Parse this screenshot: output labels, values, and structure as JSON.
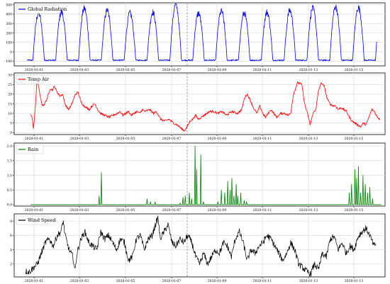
{
  "chart_data": [
    {
      "type": "line",
      "series": [
        {
          "name": "Global Radiation",
          "color": "#0000ff",
          "values": []
        }
      ],
      "x_dates": [
        "2020-01-01",
        "2020-01-03",
        "2020-01-05",
        "2020-01-07",
        "2020-01-09",
        "2020-01-11",
        "2020-01-13",
        "2020-01-15"
      ],
      "x_range": [
        "2020-01-01",
        "2020-01-16"
      ],
      "ylim": [
        -150,
        520
      ],
      "yticks": [
        -100,
        0,
        100,
        200,
        300,
        400,
        500
      ],
      "ytick_labels": [
        "-100",
        "0",
        "100",
        "200",
        "300",
        "400",
        "500"
      ],
      "daily_peaks": [
        410,
        420,
        460,
        440,
        410,
        420,
        500,
        410,
        430,
        410,
        420,
        440,
        460,
        480,
        470
      ],
      "night_level": -90,
      "grid": true,
      "legend": "top-left"
    },
    {
      "type": "line",
      "series": [
        {
          "name": "Temp Air",
          "color": "#ff0000",
          "values": []
        }
      ],
      "x_dates": [
        "2020-01-01",
        "2020-01-03",
        "2020-01-05",
        "2020-01-07",
        "2020-01-09",
        "2020-01-11",
        "2020-01-13",
        "2020-01-15"
      ],
      "x_range": [
        "2020-01-01",
        "2020-01-16"
      ],
      "ylim": [
        -1,
        31
      ],
      "yticks": [
        0,
        5,
        10,
        15,
        20,
        25,
        30
      ],
      "ytick_labels": [
        "0",
        "5",
        "10",
        "15",
        "20",
        "25",
        "30"
      ],
      "keypoints": [
        [
          0.0,
          10
        ],
        [
          0.1,
          8
        ],
        [
          0.2,
          2
        ],
        [
          0.33,
          12
        ],
        [
          0.45,
          27
        ],
        [
          0.55,
          25
        ],
        [
          0.7,
          18
        ],
        [
          0.85,
          14
        ],
        [
          1.0,
          15
        ],
        [
          1.2,
          18
        ],
        [
          1.4,
          23
        ],
        [
          1.55,
          22
        ],
        [
          1.7,
          24
        ],
        [
          1.9,
          21
        ],
        [
          2.1,
          19
        ],
        [
          2.3,
          20
        ],
        [
          2.45,
          15
        ],
        [
          2.7,
          12
        ],
        [
          2.9,
          14
        ],
        [
          3.2,
          20
        ],
        [
          3.4,
          21
        ],
        [
          3.6,
          16
        ],
        [
          3.8,
          14
        ],
        [
          4.0,
          13
        ],
        [
          4.2,
          12
        ],
        [
          4.4,
          14
        ],
        [
          4.6,
          15
        ],
        [
          4.8,
          12
        ],
        [
          5.0,
          10
        ],
        [
          5.3,
          9
        ],
        [
          5.6,
          8
        ],
        [
          5.9,
          9
        ],
        [
          6.2,
          10
        ],
        [
          6.4,
          11
        ],
        [
          6.6,
          9
        ],
        [
          6.8,
          10
        ],
        [
          7.0,
          11
        ],
        [
          7.2,
          9
        ],
        [
          7.4,
          10
        ],
        [
          7.6,
          11
        ],
        [
          7.8,
          10
        ],
        [
          8.0,
          12
        ],
        [
          8.2,
          11
        ],
        [
          8.5,
          12
        ],
        [
          8.8,
          10
        ],
        [
          9.0,
          11
        ],
        [
          9.3,
          7
        ],
        [
          9.6,
          6
        ],
        [
          9.9,
          7
        ],
        [
          10.2,
          5
        ],
        [
          10.5,
          4
        ],
        [
          10.8,
          2
        ],
        [
          11.0,
          1
        ],
        [
          11.2,
          3
        ],
        [
          11.4,
          6
        ],
        [
          11.6,
          7
        ],
        [
          11.8,
          9
        ],
        [
          12.0,
          7
        ],
        [
          12.4,
          9
        ],
        [
          12.8,
          11
        ],
        [
          13.1,
          11
        ],
        [
          13.4,
          10
        ],
        [
          13.7,
          11
        ],
        [
          14.0,
          9
        ],
        [
          14.4,
          11
        ],
        [
          14.8,
          10
        ],
        [
          15.1,
          12
        ],
        [
          15.3,
          18
        ],
        [
          15.5,
          20
        ],
        [
          15.7,
          17
        ],
        [
          16.0,
          12
        ],
        [
          16.2,
          10
        ],
        [
          16.4,
          14
        ],
        [
          16.6,
          10
        ],
        [
          16.8,
          8
        ],
        [
          17.0,
          10
        ],
        [
          17.2,
          12
        ],
        [
          17.4,
          10
        ],
        [
          17.6,
          8
        ],
        [
          17.9,
          10
        ],
        [
          18.2,
          10
        ],
        [
          18.4,
          9
        ],
        [
          18.6,
          10
        ],
        [
          18.8,
          20
        ],
        [
          19.1,
          26
        ],
        [
          19.4,
          25
        ],
        [
          19.6,
          15
        ],
        [
          19.8,
          10
        ],
        [
          20.0,
          4
        ],
        [
          20.2,
          10
        ],
        [
          20.4,
          12
        ],
        [
          20.6,
          22
        ],
        [
          20.8,
          26
        ],
        [
          21.0,
          24
        ],
        [
          21.2,
          18
        ],
        [
          21.4,
          15
        ],
        [
          21.6,
          14
        ],
        [
          21.8,
          14
        ],
        [
          22.0,
          12
        ],
        [
          22.2,
          13
        ],
        [
          22.4,
          12
        ],
        [
          22.6,
          11
        ],
        [
          22.8,
          8
        ],
        [
          23.0,
          6
        ],
        [
          23.2,
          5
        ],
        [
          23.4,
          4
        ],
        [
          23.6,
          3
        ],
        [
          23.8,
          5
        ],
        [
          24.0,
          4
        ],
        [
          24.2,
          8
        ],
        [
          24.4,
          12
        ],
        [
          24.6,
          11
        ],
        [
          24.8,
          8
        ],
        [
          25.0,
          7
        ]
      ],
      "grid": true,
      "legend": "top-left"
    },
    {
      "type": "line",
      "series": [
        {
          "name": "Rain",
          "color": "#008000",
          "values": []
        }
      ],
      "x_dates": [
        "2020-01-01",
        "2020-01-03",
        "2020-01-05",
        "2020-01-07",
        "2020-01-09",
        "2020-01-11",
        "2020-01-13",
        "2020-01-15"
      ],
      "x_range": [
        "2020-01-01",
        "2020-01-16"
      ],
      "ylim": [
        -0.05,
        2.1
      ],
      "yticks": [
        0,
        0.5,
        1.0,
        1.5,
        2.0
      ],
      "ytick_labels": [
        "0.0",
        "0.5",
        "1.0",
        "1.5",
        "2.0"
      ],
      "events": [
        [
          2.85,
          0.3
        ],
        [
          2.95,
          1.1
        ],
        [
          4.95,
          0.2
        ],
        [
          5.1,
          0.1
        ],
        [
          5.3,
          0.1
        ],
        [
          6.4,
          0.05
        ],
        [
          6.52,
          0.25
        ],
        [
          6.62,
          0.3
        ],
        [
          6.8,
          0.4
        ],
        [
          6.9,
          0.2
        ],
        [
          7.05,
          2.0
        ],
        [
          7.12,
          1.2
        ],
        [
          7.3,
          1.7
        ],
        [
          7.42,
          0.1
        ],
        [
          8.05,
          0.1
        ],
        [
          8.2,
          0.5
        ],
        [
          8.35,
          0.4
        ],
        [
          8.48,
          0.8
        ],
        [
          8.58,
          0.5
        ],
        [
          8.66,
          0.9
        ],
        [
          8.75,
          0.3
        ],
        [
          8.85,
          0.7
        ],
        [
          8.92,
          0.3
        ],
        [
          9.05,
          0.4
        ],
        [
          9.2,
          0.15
        ],
        [
          9.3,
          0.1
        ],
        [
          13.8,
          0.4
        ],
        [
          13.9,
          0.7
        ],
        [
          14.05,
          1.2
        ],
        [
          14.12,
          0.9
        ],
        [
          14.2,
          1.3
        ],
        [
          14.3,
          0.4
        ],
        [
          14.4,
          1.0
        ],
        [
          14.5,
          0.7
        ],
        [
          14.6,
          0.4
        ],
        [
          14.7,
          0.6
        ],
        [
          14.82,
          0.2
        ]
      ],
      "grid": true,
      "legend": "top-left"
    },
    {
      "type": "line",
      "series": [
        {
          "name": "Wind Speed",
          "color": "#000000",
          "values": []
        }
      ],
      "x_dates": [
        "2020-01-01",
        "2020-01-03",
        "2020-01-05",
        "2020-01-07",
        "2020-01-09",
        "2020-01-11",
        "2020-01-13",
        "2020-01-13"
      ],
      "x_range": [
        "2020-01-01",
        "2020-01-14"
      ],
      "ylim": [
        0.2,
        9
      ],
      "yticks": [
        2,
        4,
        6,
        8
      ],
      "ytick_labels": [
        "2",
        "4",
        "6",
        "8"
      ],
      "keypoints": [
        [
          0.0,
          1.0
        ],
        [
          0.2,
          0.9
        ],
        [
          0.4,
          1.5
        ],
        [
          0.6,
          2.0
        ],
        [
          0.8,
          3.5
        ],
        [
          1.0,
          5.0
        ],
        [
          1.2,
          5.5
        ],
        [
          1.4,
          4.5
        ],
        [
          1.6,
          6.0
        ],
        [
          1.8,
          6.5
        ],
        [
          1.9,
          8.1
        ],
        [
          2.0,
          6.0
        ],
        [
          2.2,
          4.0
        ],
        [
          2.4,
          3.0
        ],
        [
          2.5,
          1.0
        ],
        [
          2.6,
          3.5
        ],
        [
          2.8,
          5.5
        ],
        [
          3.0,
          6.5
        ],
        [
          3.2,
          5.0
        ],
        [
          3.4,
          4.5
        ],
        [
          3.6,
          4.0
        ],
        [
          3.8,
          6.5
        ],
        [
          4.0,
          5.5
        ],
        [
          4.2,
          6.0
        ],
        [
          4.4,
          5.0
        ],
        [
          4.6,
          4.0
        ],
        [
          4.8,
          5.5
        ],
        [
          5.0,
          5.0
        ],
        [
          5.2,
          2.5
        ],
        [
          5.4,
          3.0
        ],
        [
          5.6,
          5.5
        ],
        [
          5.8,
          6.0
        ],
        [
          6.0,
          4.0
        ],
        [
          6.2,
          5.5
        ],
        [
          6.4,
          6.0
        ],
        [
          6.6,
          7.8
        ],
        [
          6.7,
          8.5
        ],
        [
          6.8,
          5.5
        ],
        [
          7.0,
          6.5
        ],
        [
          7.2,
          7.5
        ],
        [
          7.4,
          5.0
        ],
        [
          7.6,
          4.5
        ],
        [
          7.8,
          5.5
        ],
        [
          8.0,
          5.0
        ],
        [
          8.2,
          6.0
        ],
        [
          8.4,
          5.0
        ],
        [
          8.6,
          3.0
        ],
        [
          8.8,
          2.0
        ],
        [
          9.0,
          3.5
        ],
        [
          9.2,
          2.0
        ],
        [
          9.4,
          3.0
        ],
        [
          9.6,
          4.0
        ],
        [
          9.8,
          3.5
        ],
        [
          10.0,
          5.0
        ],
        [
          10.2,
          4.5
        ],
        [
          10.4,
          3.0
        ],
        [
          10.6,
          5.5
        ],
        [
          10.8,
          6.5
        ],
        [
          11.0,
          5.0
        ],
        [
          11.2,
          2.5
        ],
        [
          11.4,
          4.0
        ],
        [
          11.6,
          3.5
        ],
        [
          11.8,
          4.5
        ],
        [
          12.0,
          5.0
        ],
        [
          12.2,
          6.0
        ],
        [
          12.4,
          5.5
        ],
        [
          12.6,
          4.5
        ],
        [
          12.8,
          3.5
        ],
        [
          13.0,
          2.5
        ],
        [
          13.2,
          3.5
        ],
        [
          13.4,
          5.0
        ],
        [
          13.6,
          4.0
        ],
        [
          13.8,
          2.0
        ],
        [
          14.0,
          1.5
        ],
        [
          14.2,
          1.0
        ],
        [
          14.4,
          0.6
        ],
        [
          14.6,
          2.0
        ],
        [
          14.8,
          1.2
        ],
        [
          15.0,
          3.5
        ],
        [
          15.2,
          3.0
        ],
        [
          15.4,
          5.5
        ],
        [
          15.6,
          5.8
        ],
        [
          15.8,
          4.0
        ],
        [
          16.0,
          5.0
        ],
        [
          16.2,
          3.5
        ],
        [
          16.4,
          4.5
        ],
        [
          16.6,
          4.0
        ],
        [
          16.8,
          5.8
        ],
        [
          17.0,
          6.5
        ],
        [
          17.2,
          7.0
        ],
        [
          17.4,
          6.0
        ],
        [
          17.6,
          4.5
        ],
        [
          17.7,
          4.8
        ]
      ],
      "grid": true,
      "legend": "top-left"
    }
  ]
}
